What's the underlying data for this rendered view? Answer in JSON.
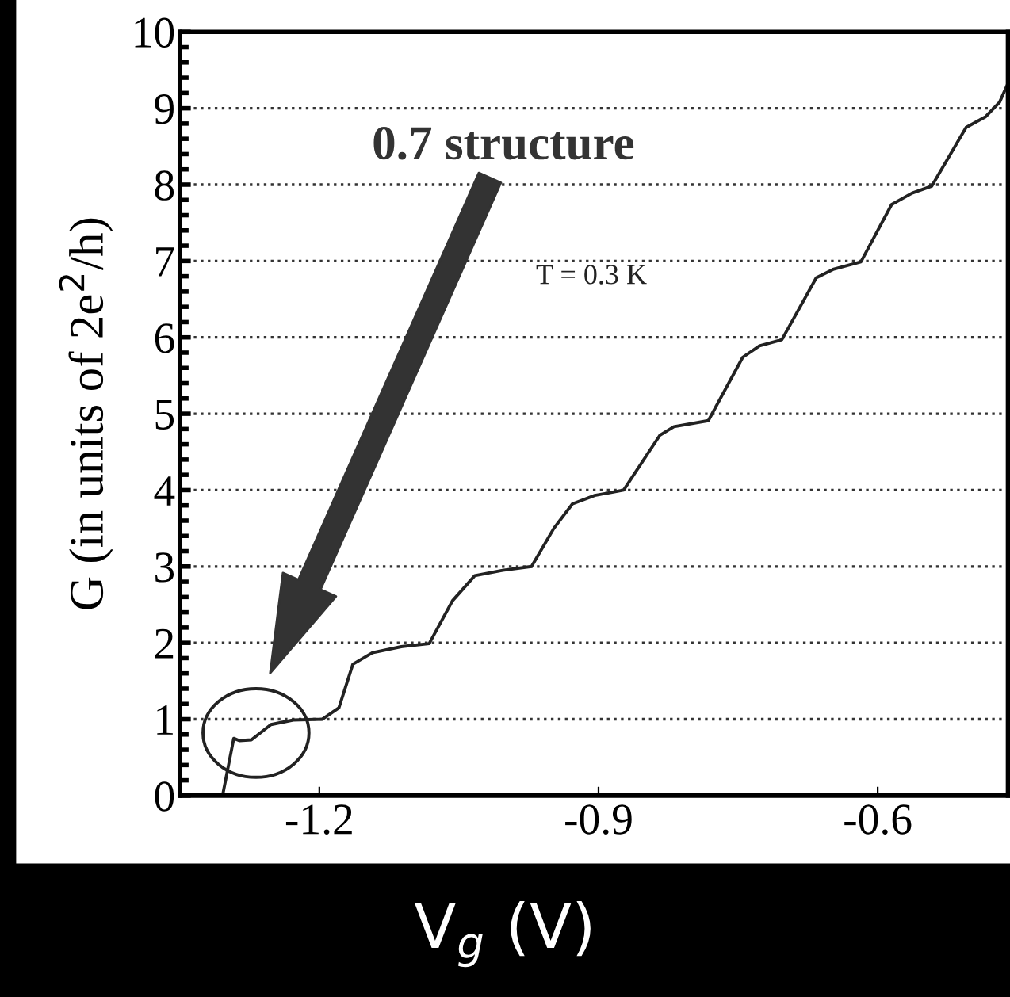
{
  "chart_data": {
    "type": "line",
    "xlabel": "V$_{g}$ (V)",
    "ylabel": "G (in units of 2e$^{2}$/h)",
    "x": [
      -1.304,
      -1.292,
      -1.286,
      -1.273,
      -1.252,
      -1.228,
      -1.197,
      -1.179,
      -1.164,
      -1.143,
      -1.112,
      -1.082,
      -1.057,
      -1.033,
      -1.003,
      -0.972,
      -0.948,
      -0.928,
      -0.904,
      -0.873,
      -0.834,
      -0.819,
      -0.782,
      -0.745,
      -0.727,
      -0.703,
      -0.666,
      -0.648,
      -0.618,
      -0.585,
      -0.563,
      -0.542,
      -0.505,
      -0.484,
      -0.469,
      -0.461
    ],
    "series": [
      {
        "color": "#222222",
        "values": [
          0,
          0.75,
          0.72,
          0.73,
          0.93,
          0.99,
          1.0,
          1.15,
          1.72,
          1.87,
          1.95,
          1.99,
          2.55,
          2.88,
          2.95,
          3.0,
          3.5,
          3.82,
          3.93,
          4.0,
          4.72,
          4.83,
          4.91,
          5.74,
          5.89,
          5.97,
          6.78,
          6.89,
          6.99,
          7.74,
          7.89,
          7.98,
          8.75,
          8.89,
          9.08,
          9.3
        ]
      }
    ],
    "xlim": [
      -1.35,
      -0.46
    ],
    "ylim": [
      0,
      10
    ],
    "xticks": [
      -1.2,
      -0.9,
      -0.6
    ],
    "yticks": [
      0,
      1,
      2,
      3,
      4,
      5,
      6,
      7,
      8,
      9,
      10
    ],
    "grid": "y",
    "line_style": "solid",
    "marker": "none",
    "annotations": [
      "0.7 structure",
      "T = 0.3 K"
    ]
  }
}
